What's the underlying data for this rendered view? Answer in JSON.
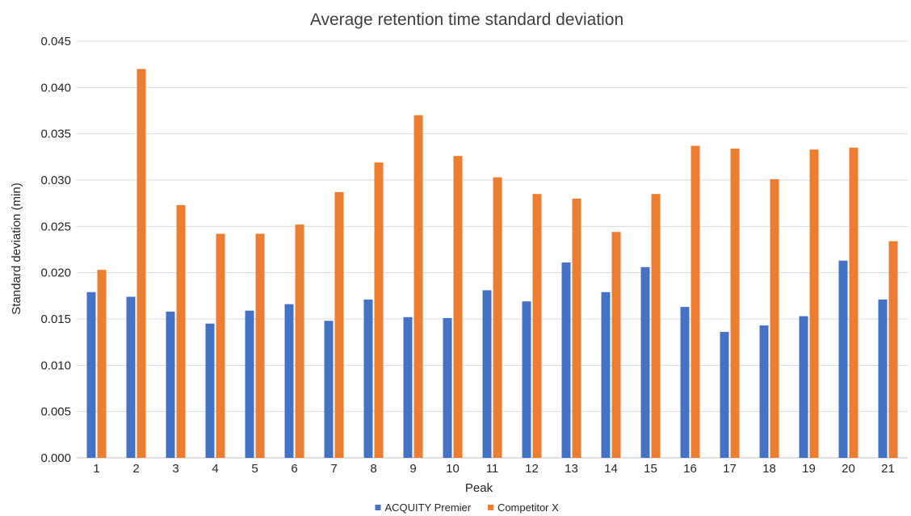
{
  "chart_data": {
    "type": "bar",
    "title": "Average retention time standard deviation",
    "xlabel": "Peak",
    "ylabel": "Standard deviation (min)",
    "ylim": [
      0,
      0.045
    ],
    "ytick_step": 0.005,
    "ytick_decimals": 3,
    "grid": "horizontal",
    "legend_position": "bottom-center",
    "categories": [
      "1",
      "2",
      "3",
      "4",
      "5",
      "6",
      "7",
      "8",
      "9",
      "10",
      "11",
      "12",
      "13",
      "14",
      "15",
      "16",
      "17",
      "18",
      "19",
      "20",
      "21"
    ],
    "series": [
      {
        "name": "ACQUITY Premier",
        "color": "#4472c4",
        "values": [
          0.0179,
          0.0174,
          0.0158,
          0.0145,
          0.0159,
          0.0166,
          0.0148,
          0.0171,
          0.0152,
          0.0151,
          0.0181,
          0.0169,
          0.0211,
          0.0179,
          0.0206,
          0.0163,
          0.0136,
          0.0143,
          0.0153,
          0.0213,
          0.0171
        ]
      },
      {
        "name": "Competitor X",
        "color": "#ed7d31",
        "values": [
          0.0203,
          0.042,
          0.0273,
          0.0242,
          0.0242,
          0.0252,
          0.0287,
          0.0319,
          0.037,
          0.0326,
          0.0303,
          0.0285,
          0.028,
          0.0244,
          0.0285,
          0.0337,
          0.0334,
          0.0301,
          0.0333,
          0.0335,
          0.0234
        ]
      }
    ]
  }
}
